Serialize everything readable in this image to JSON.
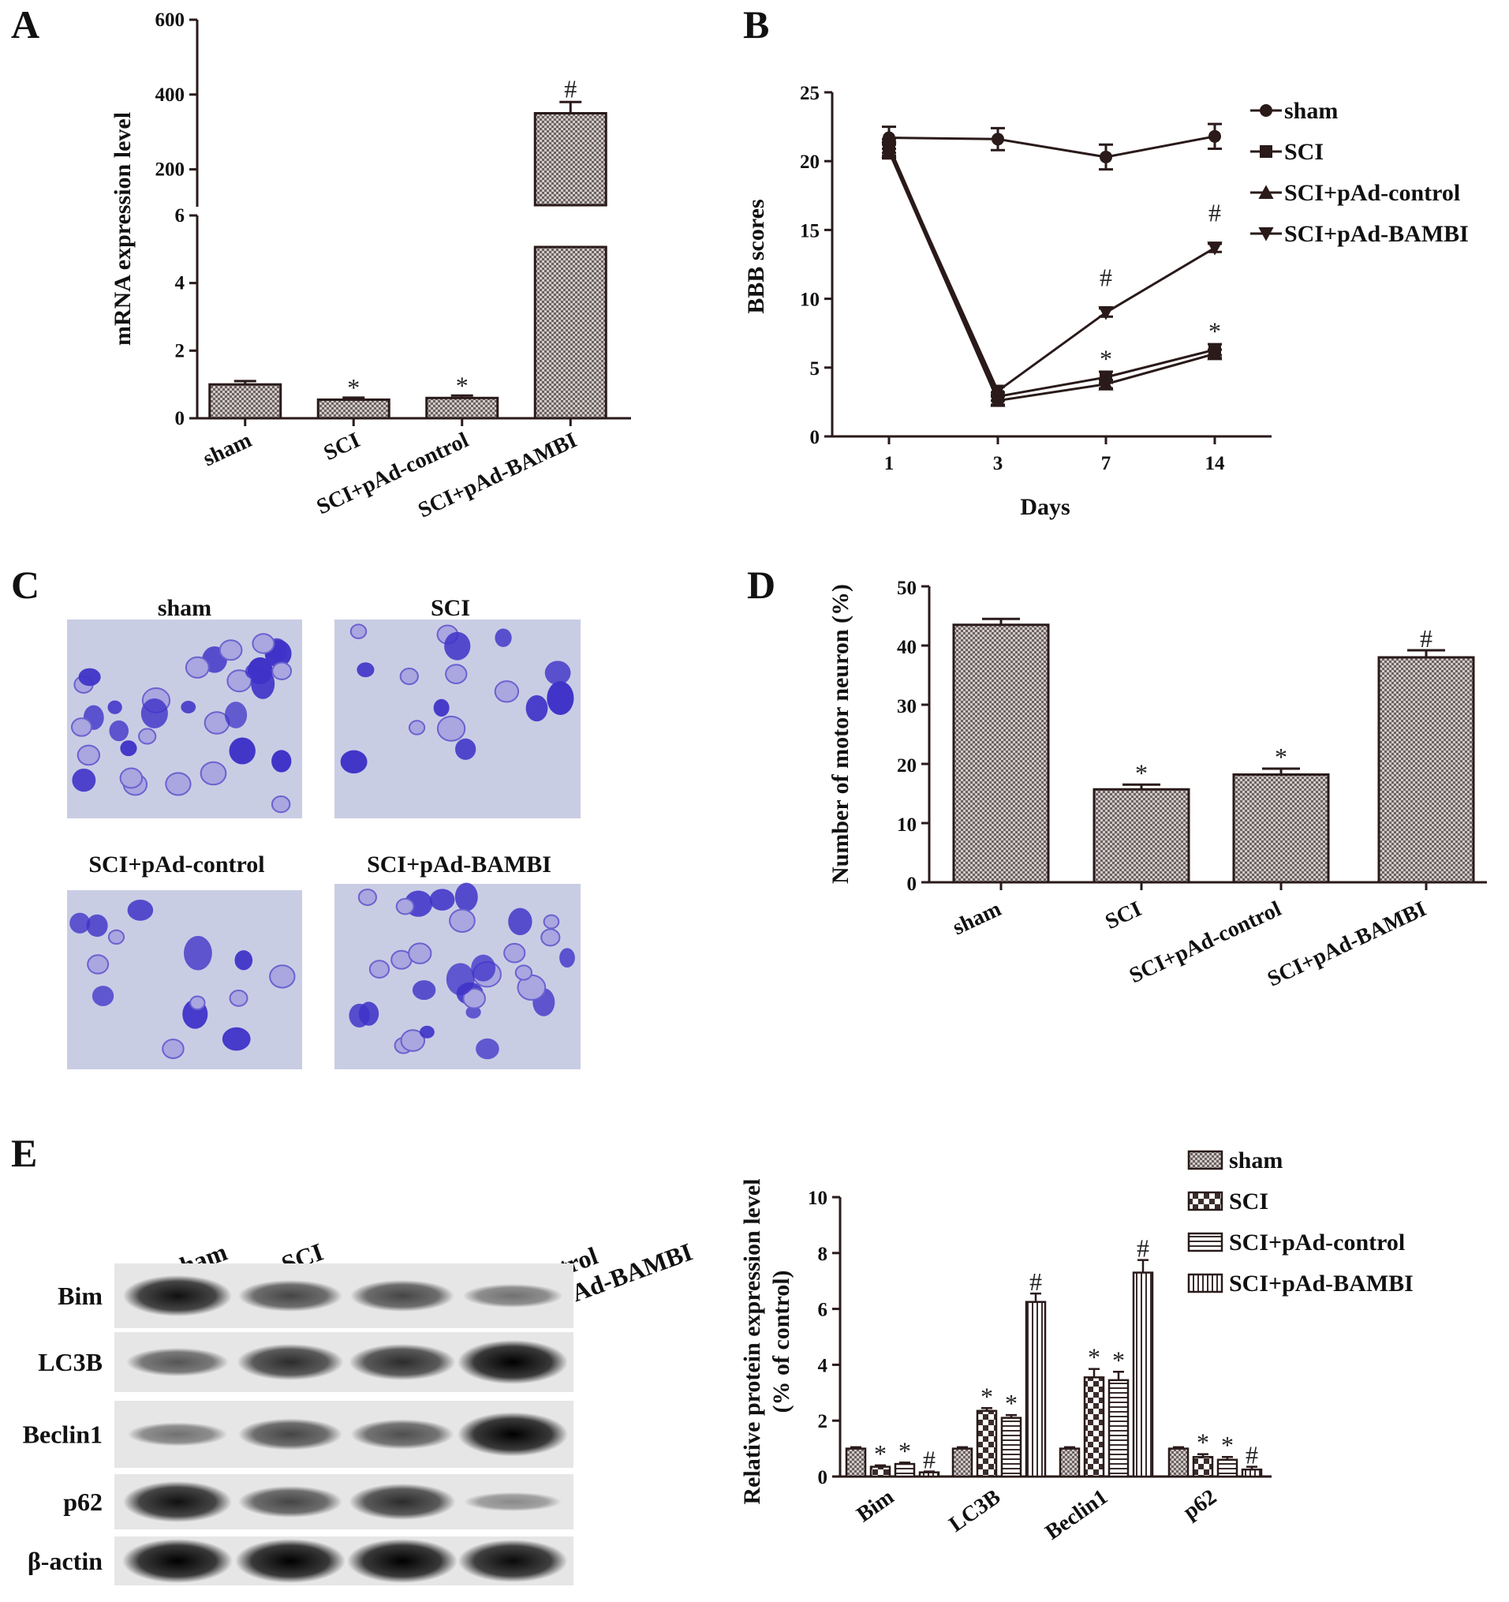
{
  "panels": {
    "A": "A",
    "B": "B",
    "C": "C",
    "D": "D",
    "E": "E"
  },
  "chart_data": [
    {
      "id": "A",
      "type": "bar",
      "ylabel": "mRNA expression level",
      "categories": [
        "sham",
        "SCI",
        "SCI+pAd-control",
        "SCI+pAd-BAMBI"
      ],
      "values": [
        1.0,
        0.55,
        0.6,
        350
      ],
      "errors": [
        0.1,
        0.06,
        0.07,
        30
      ],
      "annotations": [
        "",
        "*",
        "*",
        "#"
      ],
      "axis_break": {
        "lower": [
          0,
          6
        ],
        "upper": [
          0,
          600
        ]
      },
      "lower_ticks": [
        "0",
        "2",
        "4",
        "6"
      ],
      "upper_ticks": [
        "200",
        "400",
        "600"
      ]
    },
    {
      "id": "B",
      "type": "line",
      "xlabel": "Days",
      "ylabel": "BBB scores",
      "x": [
        "1",
        "3",
        "7",
        "14"
      ],
      "ylim": [
        0,
        25
      ],
      "yticks": [
        "0",
        "5",
        "10",
        "15",
        "20",
        "25"
      ],
      "series": [
        {
          "name": "sham",
          "values": [
            21.7,
            21.6,
            20.3,
            21.8
          ],
          "errors": [
            0.8,
            0.8,
            0.9,
            0.9
          ],
          "marker": "circle"
        },
        {
          "name": "SCI",
          "values": [
            21.1,
            2.9,
            4.3,
            6.3
          ],
          "errors": [
            0.5,
            0.3,
            0.4,
            0.4
          ],
          "marker": "square"
        },
        {
          "name": "SCI+pAd-control",
          "values": [
            20.7,
            2.6,
            3.8,
            6.0
          ],
          "errors": [
            0.5,
            0.3,
            0.3,
            0.3
          ],
          "marker": "triangle-up"
        },
        {
          "name": "SCI+pAd-BAMBI",
          "values": [
            20.9,
            3.3,
            9.0,
            13.7
          ],
          "errors": [
            0.5,
            0.3,
            0.3,
            0.3
          ],
          "marker": "triangle-down"
        }
      ],
      "annotations": [
        {
          "x": "7",
          "text": "#",
          "y": 11.5
        },
        {
          "x": "14",
          "text": "#",
          "y": 16.2
        },
        {
          "x": "7",
          "text": "*",
          "y": 5.6
        },
        {
          "x": "14",
          "text": "*",
          "y": 7.6
        }
      ],
      "legend_position": "right"
    },
    {
      "id": "D",
      "type": "bar",
      "ylabel": "Number of motor neuron (%)",
      "categories": [
        "sham",
        "SCI",
        "SCI+pAd-control",
        "SCI+pAd-BAMBI"
      ],
      "values": [
        43.5,
        15.7,
        18.2,
        38.0
      ],
      "errors": [
        1.0,
        0.8,
        1.0,
        1.2
      ],
      "annotations": [
        "",
        "*",
        "*",
        "#"
      ],
      "ylim": [
        0,
        50
      ],
      "yticks": [
        "0",
        "10",
        "20",
        "30",
        "40",
        "50"
      ]
    },
    {
      "id": "E",
      "type": "bar",
      "ylabel": "Relative protein expression level",
      "ylabel2": "(% of control)",
      "categories": [
        "Bim",
        "LC3B",
        "Beclin1",
        "p62"
      ],
      "ylim": [
        0,
        10
      ],
      "yticks": [
        "0",
        "2",
        "4",
        "6",
        "8",
        "10"
      ],
      "series": [
        {
          "name": "sham",
          "values": [
            1.0,
            1.0,
            1.0,
            1.0
          ],
          "errors": [
            0.05,
            0.05,
            0.05,
            0.05
          ],
          "pattern": "checker"
        },
        {
          "name": "SCI",
          "values": [
            0.35,
            2.35,
            3.55,
            0.7
          ],
          "errors": [
            0.05,
            0.1,
            0.3,
            0.1
          ],
          "pattern": "dots"
        },
        {
          "name": "SCI+pAd-control",
          "values": [
            0.45,
            2.1,
            3.45,
            0.6
          ],
          "errors": [
            0.05,
            0.1,
            0.3,
            0.1
          ],
          "pattern": "hlines"
        },
        {
          "name": "SCI+pAd-BAMBI",
          "values": [
            0.15,
            6.25,
            7.3,
            0.25
          ],
          "errors": [
            0.03,
            0.3,
            0.45,
            0.1
          ],
          "pattern": "vlines"
        }
      ],
      "annotations": [
        [
          "",
          "*",
          "*",
          "#"
        ],
        [
          "",
          "*",
          "*",
          "#"
        ],
        [
          "",
          "*",
          "*",
          "#"
        ],
        [
          "",
          "*",
          "*",
          "#"
        ]
      ]
    }
  ],
  "micrographs": {
    "titles": [
      "sham",
      "SCI",
      "SCI+pAd-control",
      "SCI+pAd-BAMBI"
    ]
  },
  "western_blot": {
    "lane_labels": [
      "sham",
      "SCI",
      "SCI+pAd-control",
      "SCI+pAd-BAMBI"
    ],
    "rows": [
      {
        "label": "Bim",
        "intensities": [
          0.9,
          0.6,
          0.6,
          0.35
        ]
      },
      {
        "label": "LC3B",
        "intensities": [
          0.5,
          0.75,
          0.75,
          1.0
        ]
      },
      {
        "label": "Beclin1",
        "intensities": [
          0.35,
          0.6,
          0.55,
          1.0
        ]
      },
      {
        "label": "p62",
        "intensities": [
          0.9,
          0.6,
          0.75,
          0.2
        ]
      },
      {
        "label": "β-actin",
        "intensities": [
          1.0,
          1.0,
          1.0,
          0.95
        ]
      }
    ]
  },
  "colors": {
    "bar_fill": "#b8b0b0",
    "bar_stroke": "#2a1a1a",
    "stain": "#4a3fd0",
    "tissue": "#c9cde4"
  }
}
